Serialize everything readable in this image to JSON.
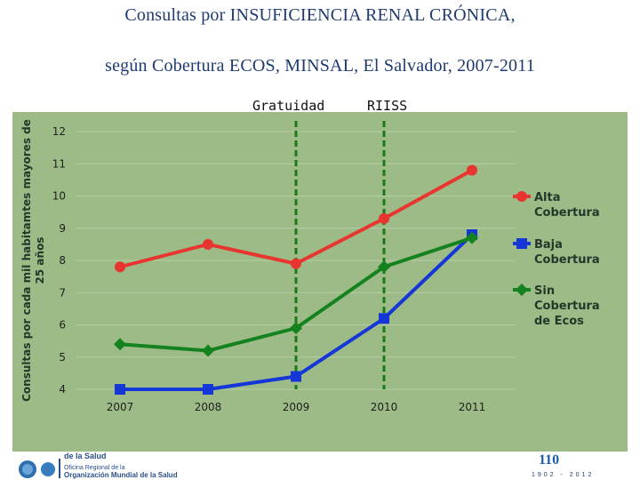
{
  "title": {
    "line1": "Consultas por INSUFICIENCIA RENAL CRÓNICA,",
    "line2": "según Cobertura ECOS, MINSAL, El Salvador, 2007-2011"
  },
  "markers": [
    {
      "label": "Gratuidad",
      "x": "2009"
    },
    {
      "label": "RIISS",
      "x": "2010"
    }
  ],
  "chart_data": {
    "type": "line",
    "categories": [
      "2007",
      "2008",
      "2009",
      "2010",
      "2011"
    ],
    "ylabel_lines": [
      "Consultas por cada mil habitamtes mayores de",
      "25 años"
    ],
    "ylim": [
      4,
      12
    ],
    "yticks": [
      4,
      5,
      6,
      7,
      8,
      9,
      10,
      11,
      12
    ],
    "grid": true,
    "legend_position": "right",
    "series": [
      {
        "name_lines": [
          "Alta",
          "Cobertura"
        ],
        "color": "#e8352f",
        "marker": "circle",
        "values": [
          7.8,
          8.5,
          7.9,
          9.3,
          10.8
        ]
      },
      {
        "name_lines": [
          "Baja",
          "Cobertura"
        ],
        "color": "#1637d8",
        "marker": "square",
        "values": [
          4.0,
          4.0,
          4.4,
          6.2,
          8.8
        ]
      },
      {
        "name_lines": [
          "Sin",
          "Cobertura",
          "de Ecos"
        ],
        "color": "#14821e",
        "marker": "diamond",
        "values": [
          5.4,
          5.2,
          5.9,
          7.8,
          8.7
        ]
      }
    ]
  },
  "footer": {
    "left_logo_lines": [
      "de la Salud",
      "Oficina Regional de la",
      "Organización Mundial de la Salud"
    ],
    "right_logo_text": "110",
    "right_logo_years": "1902 - 2012"
  }
}
